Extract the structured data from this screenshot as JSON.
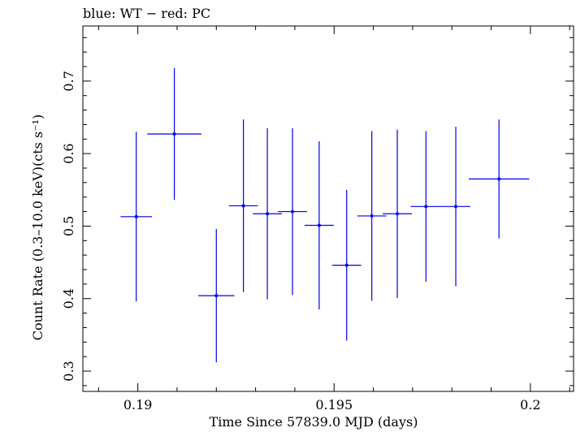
{
  "chart_data": {
    "type": "scatter",
    "title": "blue: WT − red: PC",
    "xlabel": "Time Since 57839.0 MJD (days)",
    "ylabel": "Count Rate (0.3–10.0 keV)(cts s⁻¹)",
    "xlim": [
      0.1886,
      0.2011
    ],
    "ylim": [
      0.272,
      0.776
    ],
    "x_ticks": [
      0.19,
      0.195,
      0.2
    ],
    "x_tick_labels": [
      "0.19",
      "0.195",
      "0.2"
    ],
    "y_ticks": [
      0.3,
      0.4,
      0.5,
      0.6,
      0.7
    ],
    "y_tick_labels": [
      "0.3",
      "0.4",
      "0.5",
      "0.6",
      "0.7"
    ],
    "grid": false,
    "series": [
      {
        "name": "WT",
        "color": "#0000ee",
        "points": [
          {
            "x": 0.18996,
            "xerr": 0.0004,
            "y": 0.513,
            "yerr": 0.117
          },
          {
            "x": 0.19093,
            "xerr": 0.00069,
            "y": 0.627,
            "yerr": 0.091
          },
          {
            "x": 0.192,
            "xerr": 0.00046,
            "y": 0.404,
            "yerr": 0.092
          },
          {
            "x": 0.19269,
            "xerr": 0.00037,
            "y": 0.528,
            "yerr": 0.119
          },
          {
            "x": 0.1933,
            "xerr": 0.00037,
            "y": 0.517,
            "yerr": 0.118
          },
          {
            "x": 0.19394,
            "xerr": 0.00037,
            "y": 0.52,
            "yerr": 0.115
          },
          {
            "x": 0.19462,
            "xerr": 0.00037,
            "y": 0.501,
            "yerr": 0.116
          },
          {
            "x": 0.19532,
            "xerr": 0.00037,
            "y": 0.446,
            "yerr": 0.104
          },
          {
            "x": 0.19596,
            "xerr": 0.00037,
            "y": 0.514,
            "yerr": 0.117
          },
          {
            "x": 0.19661,
            "xerr": 0.00037,
            "y": 0.517,
            "yerr": 0.116
          },
          {
            "x": 0.19734,
            "xerr": 0.00039,
            "y": 0.527,
            "yerr": 0.104
          },
          {
            "x": 0.1981,
            "xerr": 0.00037,
            "y": 0.527,
            "yerr": 0.11
          },
          {
            "x": 0.1992,
            "xerr": 0.00077,
            "y": 0.565,
            "yerr": 0.082
          }
        ]
      }
    ]
  }
}
